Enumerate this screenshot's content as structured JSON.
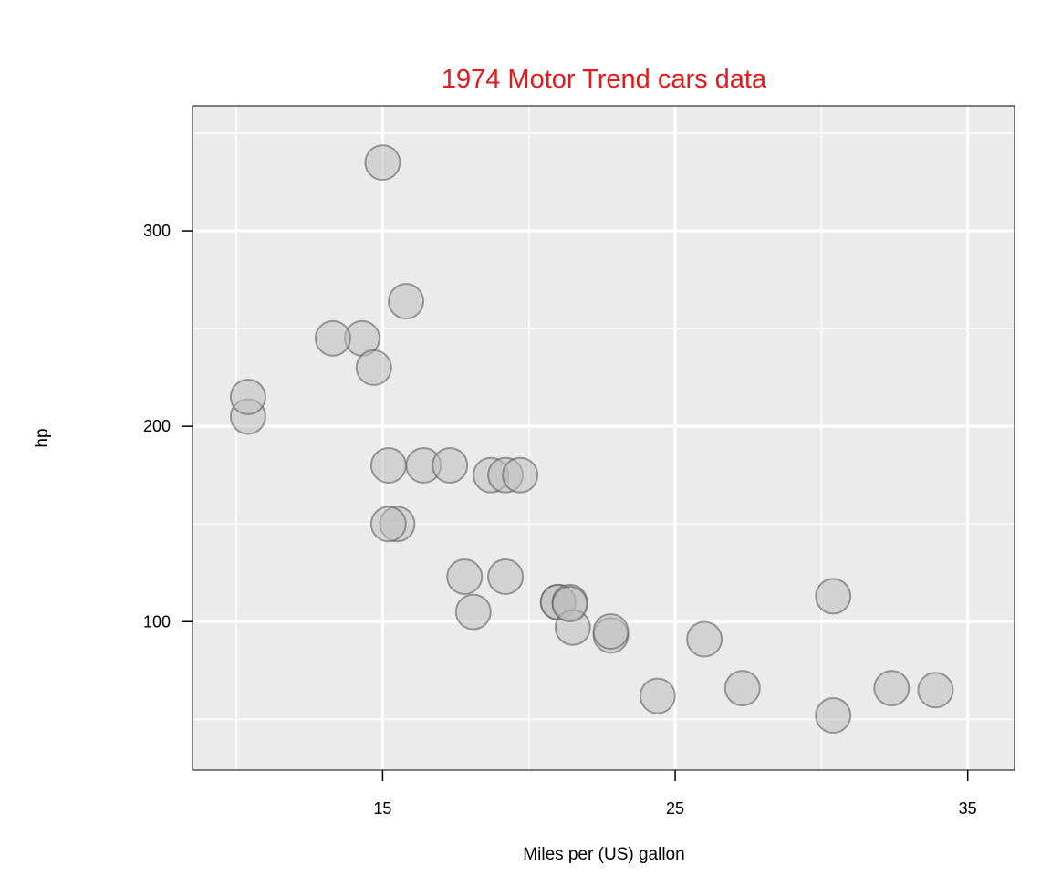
{
  "chart_data": {
    "type": "scatter",
    "title": "1974 Motor Trend cars data",
    "xlabel": "Miles per (US) gallon",
    "ylabel": "hp",
    "xlim": [
      8.5,
      36.6
    ],
    "ylim": [
      24,
      364
    ],
    "x_ticks": [
      15,
      25,
      35
    ],
    "y_ticks": [
      100,
      200,
      300
    ],
    "x_grid_major": [
      15,
      25,
      35
    ],
    "x_grid_minor": [
      10,
      20,
      30
    ],
    "y_grid_major": [
      100,
      200,
      300
    ],
    "y_grid_minor": [
      50,
      150,
      250,
      350
    ],
    "grid": true,
    "colors": {
      "title": "#e31a1c",
      "panel_background": "#ebebeb",
      "grid": "#ffffff",
      "point_fill": "#bebebe",
      "point_stroke": "#555555"
    },
    "x": [
      21.0,
      21.0,
      22.8,
      21.4,
      18.7,
      18.1,
      14.3,
      24.4,
      22.8,
      19.2,
      17.8,
      16.4,
      17.3,
      15.2,
      10.4,
      10.4,
      14.7,
      32.4,
      30.4,
      33.9,
      21.5,
      15.5,
      15.2,
      13.3,
      19.2,
      27.3,
      26.0,
      30.4,
      15.8,
      19.7,
      15.0,
      21.4
    ],
    "y": [
      110,
      110,
      93,
      110,
      175,
      105,
      245,
      62,
      95,
      123,
      123,
      180,
      180,
      180,
      205,
      215,
      230,
      66,
      52,
      65,
      97,
      150,
      150,
      245,
      175,
      66,
      91,
      113,
      264,
      175,
      335,
      109
    ]
  }
}
